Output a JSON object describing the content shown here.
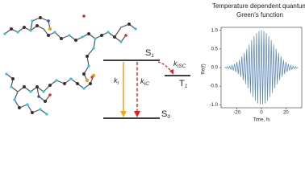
{
  "diagram": {
    "s1": {
      "symbol": "S",
      "subscript": "1"
    },
    "s0": {
      "symbol": "S",
      "subscript": "0"
    },
    "t1": {
      "symbol": "T",
      "subscript": "1"
    },
    "kr": {
      "symbol": "k",
      "subscript": "r"
    },
    "kic": {
      "symbol": "k",
      "subscript": "IC"
    },
    "kisc": {
      "symbol": "k",
      "subscript": "ISC"
    }
  },
  "chart_data": {
    "type": "line",
    "title": [
      "Temperature dependent quantum",
      "Green's function"
    ],
    "x_label": "Time, fs",
    "y_label": "Re(f)",
    "x": [
      -30,
      -29,
      -28,
      -27,
      -26,
      -25,
      -24,
      -23,
      -22,
      -21,
      -20,
      -19,
      -18,
      -17,
      -16,
      -15,
      -14,
      -13,
      -12,
      -11,
      -10,
      -9,
      -8,
      -7,
      -6,
      -5,
      -4,
      -3,
      -2,
      -1,
      0,
      1,
      2,
      3,
      4,
      5,
      6,
      7,
      8,
      9,
      10,
      11,
      12,
      13,
      14,
      15,
      16,
      17,
      18,
      19,
      20,
      21,
      22,
      23,
      24,
      25,
      26,
      27,
      28,
      29,
      30
    ],
    "series": [
      {
        "color": "#4f7fb0",
        "values": [
          0.01,
          -0.02,
          0.02,
          -0.03,
          0.04,
          -0.05,
          0.06,
          -0.08,
          0.1,
          -0.12,
          0.15,
          -0.18,
          0.21,
          -0.25,
          0.3,
          -0.34,
          0.39,
          -0.45,
          0.5,
          -0.56,
          0.62,
          -0.68,
          0.74,
          -0.79,
          0.84,
          -0.89,
          0.93,
          -0.96,
          0.98,
          -0.99,
          1.0,
          -0.99,
          0.98,
          -0.96,
          0.93,
          -0.89,
          0.84,
          -0.79,
          0.74,
          -0.68,
          0.62,
          -0.56,
          0.5,
          -0.45,
          0.39,
          -0.34,
          0.3,
          -0.25,
          0.21,
          -0.18,
          0.15,
          -0.12,
          0.1,
          -0.08,
          0.06,
          -0.05,
          0.04,
          -0.03,
          0.02,
          -0.02,
          0.01
        ]
      }
    ],
    "xlim": [
      -33,
      33
    ],
    "ylim": [
      -1.08,
      1.08
    ],
    "xticks": [
      -20,
      0,
      20
    ],
    "yticks": [
      {
        "value": -1,
        "label": "-1.0"
      },
      -0.5,
      {
        "value": 0,
        "label": "0.0"
      },
      0.5,
      {
        "value": 1,
        "label": "1.0"
      }
    ]
  }
}
